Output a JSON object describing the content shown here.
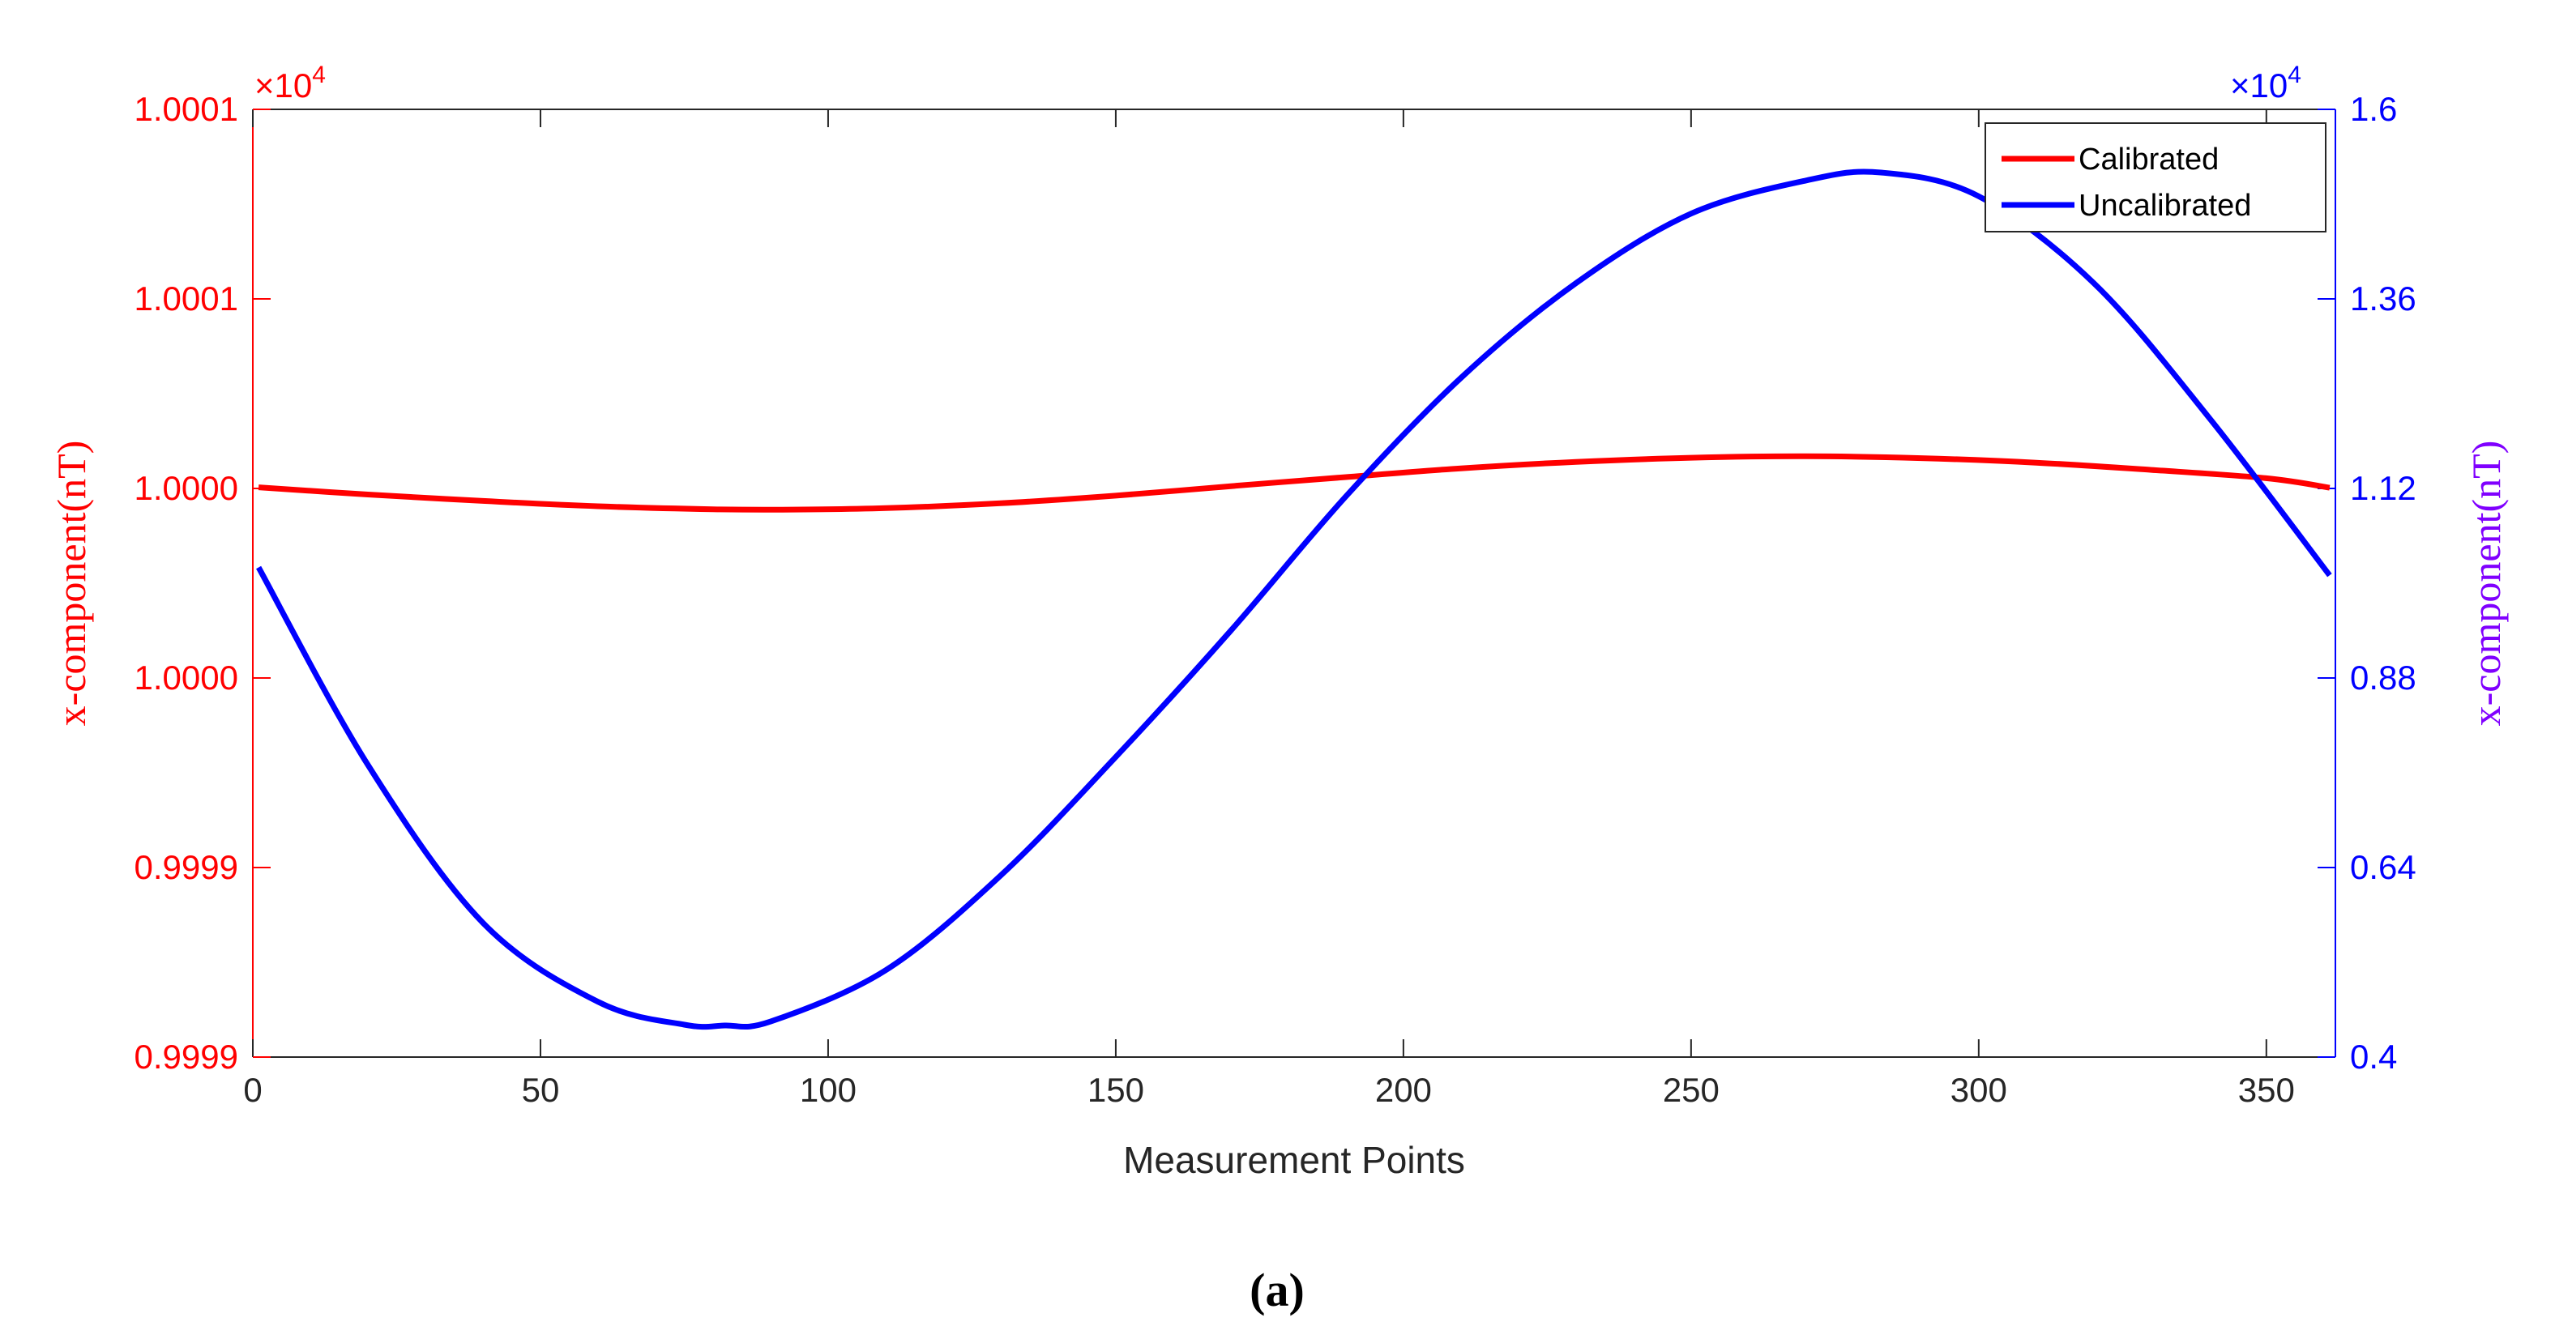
{
  "colors": {
    "calibrated": "#ff0000",
    "uncalibrated": "#0000ff",
    "axis": "#262626",
    "right_label": "#8000ff"
  },
  "chart_data": {
    "type": "line",
    "panel_label": "(a)",
    "xlabel": "Measurement Points",
    "ylabel_left": "x-component(nT)",
    "ylabel_right": "x-component(nT)",
    "left_exponent": "×10",
    "left_exponent_power": "4",
    "right_exponent": "×10",
    "right_exponent_power": "4",
    "xlim": [
      0,
      362
    ],
    "x_ticks": [
      0,
      50,
      100,
      150,
      200,
      250,
      300,
      350
    ],
    "x_tick_labels": [
      "0",
      "50",
      "100",
      "150",
      "200",
      "250",
      "300",
      "350"
    ],
    "ylim_left": [
      0.99985,
      1.0001
    ],
    "y_left_ticks": [
      0.99985,
      0.9999,
      0.99995,
      1.0,
      1.00005,
      1.0001
    ],
    "y_left_tick_labels": [
      "0.9999",
      "0.9999",
      "1.0000",
      "1.0000",
      "1.0001",
      "1.0001"
    ],
    "ylim_right": [
      0.4,
      1.6
    ],
    "y_right_ticks": [
      0.4,
      0.64,
      0.88,
      1.12,
      1.36,
      1.6
    ],
    "y_right_tick_labels": [
      "0.4",
      "0.64",
      "0.88",
      "1.12",
      "1.36",
      "1.6"
    ],
    "legend_position": "top-right",
    "grid": false,
    "series": [
      {
        "name": "Calibrated",
        "axis": "left",
        "x": [
          1,
          20,
          40,
          60,
          80,
          92,
          110,
          130,
          150,
          170,
          190,
          210,
          230,
          250,
          270,
          290,
          310,
          330,
          350,
          361
        ],
        "y": [
          1.0000003,
          0.9999984,
          0.9999967,
          0.9999953,
          0.9999945,
          0.9999944,
          0.9999948,
          0.9999961,
          0.9999981,
          1.0000006,
          1.000003,
          1.0000053,
          1.000007,
          1.0000081,
          1.0000085,
          1.000008,
          1.0000068,
          1.0000049,
          1.0000027,
          1.0000002
        ]
      },
      {
        "name": "Uncalibrated",
        "axis": "right",
        "x": [
          1,
          20,
          40,
          60,
          75,
          82,
          90,
          110,
          130,
          150,
          170,
          190,
          210,
          230,
          250,
          270,
          283,
          300,
          320,
          340,
          361
        ],
        "y": [
          1.02,
          0.77,
          0.57,
          0.47,
          0.441,
          0.44,
          0.445,
          0.51,
          0.63,
          0.78,
          0.94,
          1.11,
          1.26,
          1.38,
          1.468,
          1.51,
          1.52,
          1.49,
          1.38,
          1.21,
          1.01
        ]
      }
    ]
  }
}
